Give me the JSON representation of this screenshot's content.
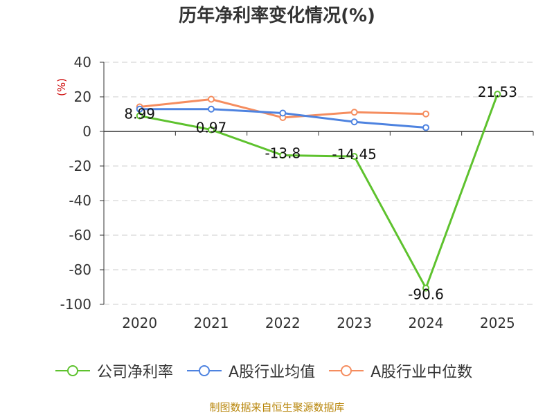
{
  "chart_data": {
    "type": "line",
    "title": "历年净利率变化情况(%)",
    "ylabel": "(%)",
    "xlabel": "",
    "categories": [
      "2020",
      "2021",
      "2022",
      "2023",
      "2024",
      "2025"
    ],
    "ylim": [
      -100,
      40
    ],
    "yticks": [
      40,
      20,
      0,
      -20,
      -40,
      -60,
      -80,
      -100
    ],
    "grid": true,
    "legend_position": "bottom-left",
    "series": [
      {
        "name": "公司净利率",
        "color": "#5ec22e",
        "values": [
          8.99,
          0.97,
          -13.8,
          -14.45,
          -90.6,
          21.53
        ],
        "labels": [
          "8.99",
          "0.97",
          "-13.8",
          "-14.45",
          "-90.6",
          "21.53"
        ]
      },
      {
        "name": "A股行业均值",
        "color": "#4e83e0",
        "values": [
          12.9,
          12.9,
          10.6,
          5.5,
          2.2,
          null
        ]
      },
      {
        "name": "A股行业中位数",
        "color": "#f58d5f",
        "values": [
          14.2,
          18.6,
          8.0,
          11.1,
          10.1,
          null
        ]
      }
    ]
  },
  "source": "制图数据来自恒生聚源数据库"
}
